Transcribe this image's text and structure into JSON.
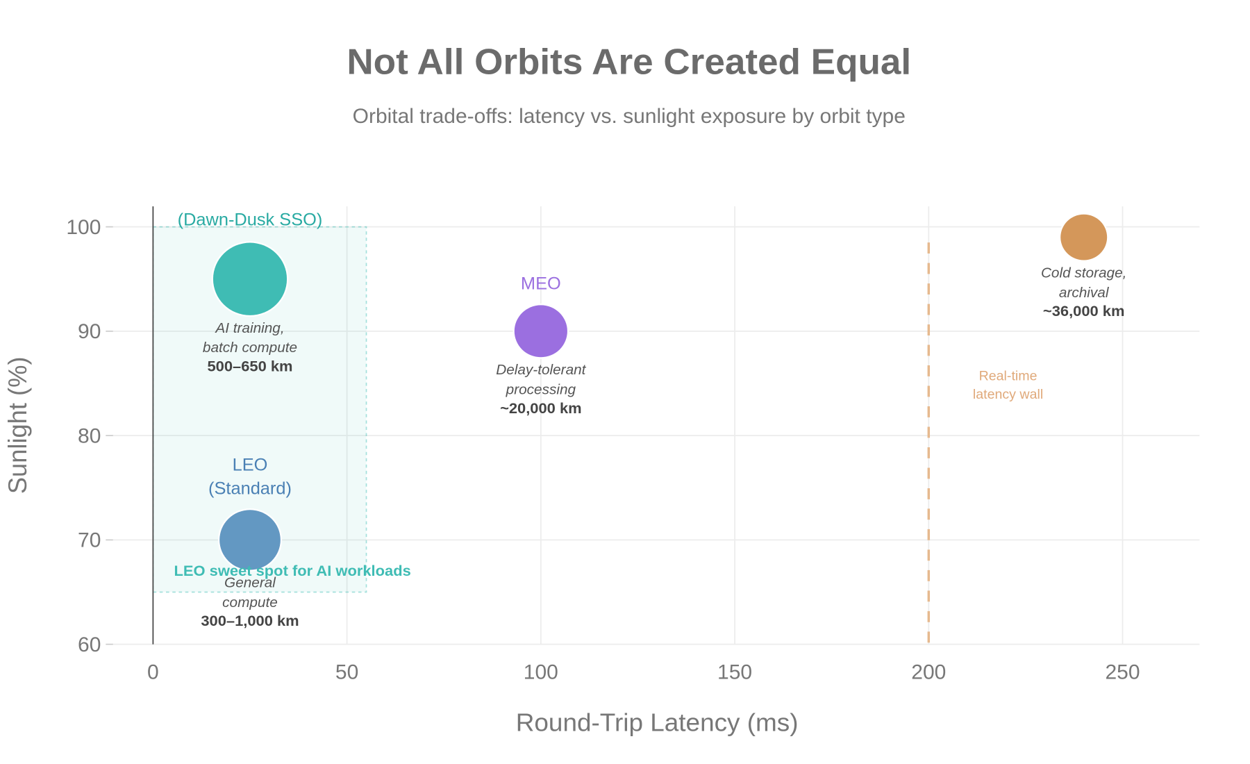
{
  "chart_data": {
    "type": "scatter",
    "title": "Not All Orbits Are Created Equal",
    "subtitle": "Orbital trade-offs: latency vs. sunlight exposure by orbit type",
    "xlabel": "Round-Trip Latency (ms)",
    "ylabel": "Sunlight (%)",
    "xlim": [
      -10,
      270
    ],
    "ylim": [
      60,
      102
    ],
    "xticks": [
      0,
      50,
      100,
      150,
      200,
      250
    ],
    "yticks": [
      60,
      70,
      80,
      90,
      100
    ],
    "grid": true,
    "points": [
      {
        "name_lines": [
          "(Dawn-Dusk SSO)"
        ],
        "x": 25,
        "y": 95,
        "color": "#3fbcb4",
        "desc_lines": [
          "AI training,",
          "batch compute"
        ],
        "altitude": "500–650 km"
      },
      {
        "name_lines": [
          "LEO",
          "(Standard)"
        ],
        "x": 25,
        "y": 70,
        "color": "#5b92bf",
        "desc_lines": [
          "General",
          "compute"
        ],
        "altitude": "300–1,000 km"
      },
      {
        "name_lines": [
          "MEO"
        ],
        "x": 100,
        "y": 90,
        "color": "#9b6fe0",
        "desc_lines": [
          "Delay-tolerant",
          "processing"
        ],
        "altitude": "~20,000 km"
      },
      {
        "name_lines": [],
        "x": 240,
        "y": 99,
        "color": "#d4975a",
        "desc_lines": [
          "Cold storage,",
          "archival"
        ],
        "altitude": "~36,000 km"
      }
    ],
    "shaded_region": {
      "x": [
        0,
        55
      ],
      "y": [
        65,
        100
      ],
      "label": "LEO sweet spot for AI workloads",
      "color": "#3fbcb4"
    },
    "vline": {
      "x": 200,
      "label_lines": [
        "Real-time",
        "latency wall"
      ],
      "color": "#e6b98e"
    }
  }
}
